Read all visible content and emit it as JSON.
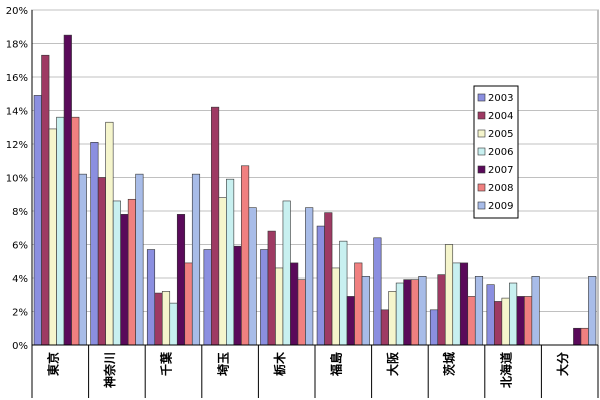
{
  "chart_data": {
    "type": "bar",
    "categories": [
      "東京",
      "神奈川",
      "千葉",
      "埼玉",
      "栃木",
      "福島",
      "大阪",
      "茨城",
      "北海道",
      "大分"
    ],
    "series": [
      {
        "name": "2003",
        "color": "#8B8FE0",
        "values": [
          14.9,
          12.1,
          5.7,
          5.7,
          5.7,
          7.1,
          6.4,
          2.1,
          3.6,
          0.0
        ]
      },
      {
        "name": "2004",
        "color": "#9E3A63",
        "values": [
          17.3,
          10.0,
          3.1,
          14.2,
          6.8,
          7.9,
          2.1,
          4.2,
          2.6,
          0.0
        ]
      },
      {
        "name": "2005",
        "color": "#F5F5CC",
        "values": [
          12.9,
          13.3,
          3.2,
          8.8,
          4.6,
          4.6,
          3.2,
          6.0,
          2.8,
          0.0
        ]
      },
      {
        "name": "2006",
        "color": "#C8F0F0",
        "values": [
          13.6,
          8.6,
          2.5,
          9.9,
          8.6,
          6.2,
          3.7,
          4.9,
          3.7,
          0.0
        ]
      },
      {
        "name": "2007",
        "color": "#5A0A5A",
        "values": [
          18.5,
          7.8,
          7.8,
          5.9,
          4.9,
          2.9,
          3.9,
          4.9,
          2.9,
          1.0
        ]
      },
      {
        "name": "2008",
        "color": "#F08080",
        "values": [
          13.6,
          8.7,
          4.9,
          10.7,
          3.9,
          4.9,
          3.9,
          2.9,
          2.9,
          1.0
        ]
      },
      {
        "name": "2009",
        "color": "#A8BCE8",
        "values": [
          10.2,
          10.2,
          10.2,
          8.2,
          8.2,
          4.1,
          4.1,
          4.1,
          4.1,
          4.1
        ]
      }
    ],
    "ylim": [
      0,
      20
    ],
    "yticks": [
      "0%",
      "2%",
      "4%",
      "6%",
      "8%",
      "10%",
      "12%",
      "14%",
      "16%",
      "18%",
      "20%"
    ],
    "grid": true,
    "legend_position": "right"
  }
}
